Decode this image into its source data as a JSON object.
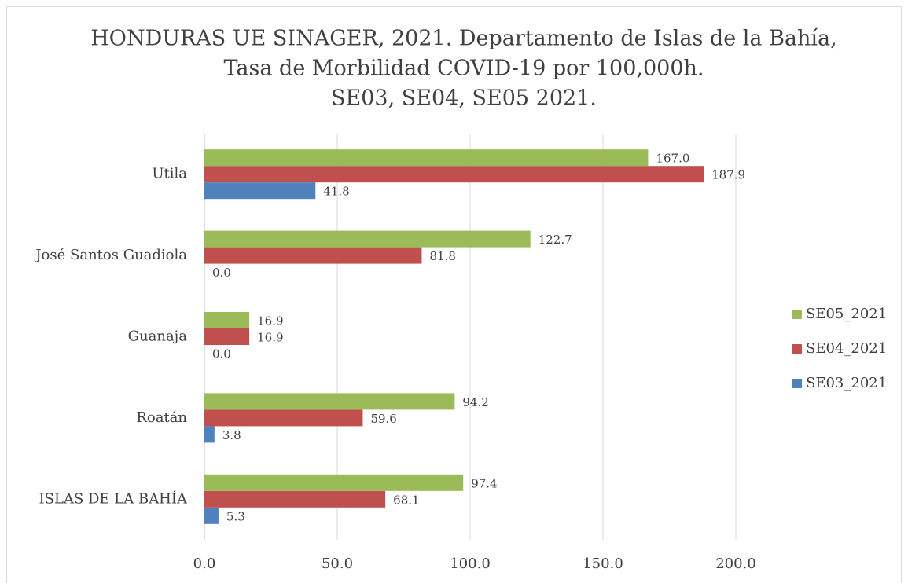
{
  "chart_data": {
    "type": "bar",
    "orientation": "horizontal",
    "title": [
      "HONDURAS UE SINAGER, 2021. Departamento de Islas de la Bahía,",
      "Tasa de Morbilidad COVID-19 por 100,000h.",
      "SE03, SE04, SE05 2021."
    ],
    "categories": [
      "ISLAS DE LA BAHÍA",
      "Roatán",
      "Guanaja",
      "José Santos Guadiola",
      "Utila"
    ],
    "series": [
      {
        "name": "SE03_2021",
        "color": "#4f81bd",
        "values": [
          5.3,
          3.8,
          0,
          0,
          41.8
        ],
        "value_labels": [
          "5.3",
          "3.8",
          "0.0",
          "0.0",
          "41.8"
        ]
      },
      {
        "name": "SE04_2021",
        "color": "#c0504d",
        "values": [
          68.1,
          59.6,
          16.9,
          81.8,
          187.9
        ],
        "value_labels": [
          "68.1",
          "59.6",
          "16.9",
          "81.8",
          "187.9"
        ]
      },
      {
        "name": "SE05_2021",
        "color": "#9bbb59",
        "values": [
          97.4,
          94.2,
          16.9,
          122.7,
          167
        ],
        "value_labels": [
          "97.4",
          "94.2",
          "16.9",
          "122.7",
          "167.0"
        ]
      }
    ],
    "xlim": [
      0,
      200
    ],
    "xticks": [
      {
        "value": 0,
        "label": "0.0"
      },
      {
        "value": 50,
        "label": "50.0"
      },
      {
        "value": 100,
        "label": "100.0"
      },
      {
        "value": 150,
        "label": "150.0"
      },
      {
        "value": 200,
        "label": "200.0"
      }
    ],
    "grid": true,
    "legend": "right"
  }
}
